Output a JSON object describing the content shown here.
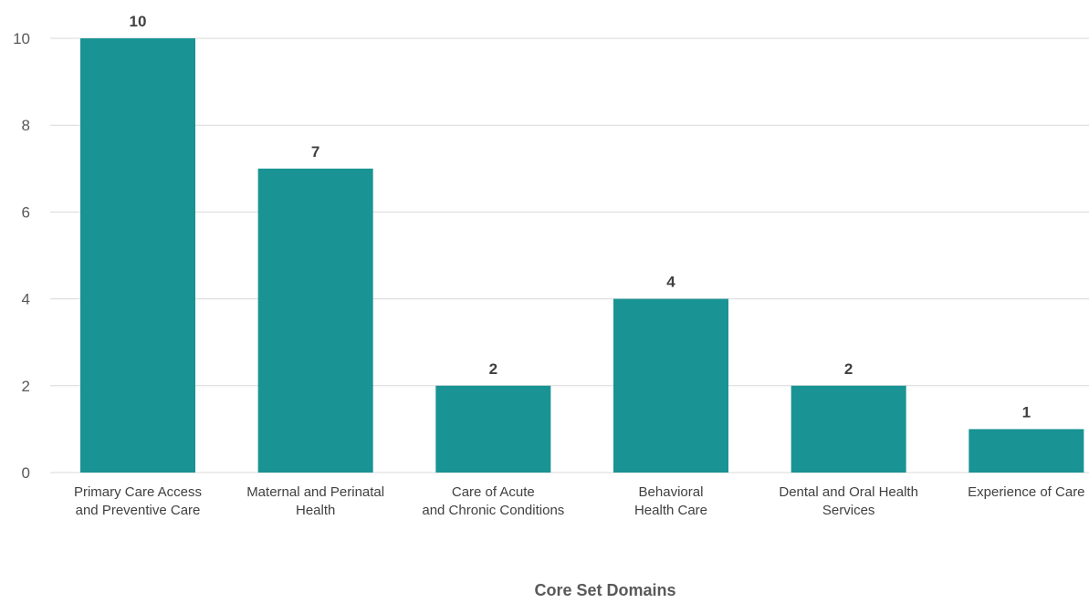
{
  "chart_data": {
    "type": "bar",
    "categories": [
      [
        "Primary Care Access",
        "and Preventive Care"
      ],
      [
        "Maternal and Perinatal",
        "Health"
      ],
      [
        "Care of Acute",
        "and Chronic Conditions"
      ],
      [
        "Behavioral",
        "Health Care"
      ],
      [
        "Dental and Oral Health",
        "Services"
      ],
      [
        "Experience of Care"
      ]
    ],
    "values": [
      10,
      7,
      2,
      4,
      2,
      1
    ],
    "xlabel": "Core Set Domains",
    "ylabel": "",
    "ylim": [
      0,
      10
    ],
    "yticks": [
      0,
      2,
      4,
      6,
      8,
      10
    ],
    "grid": true,
    "legend": "none",
    "bar_color": "#199393"
  }
}
